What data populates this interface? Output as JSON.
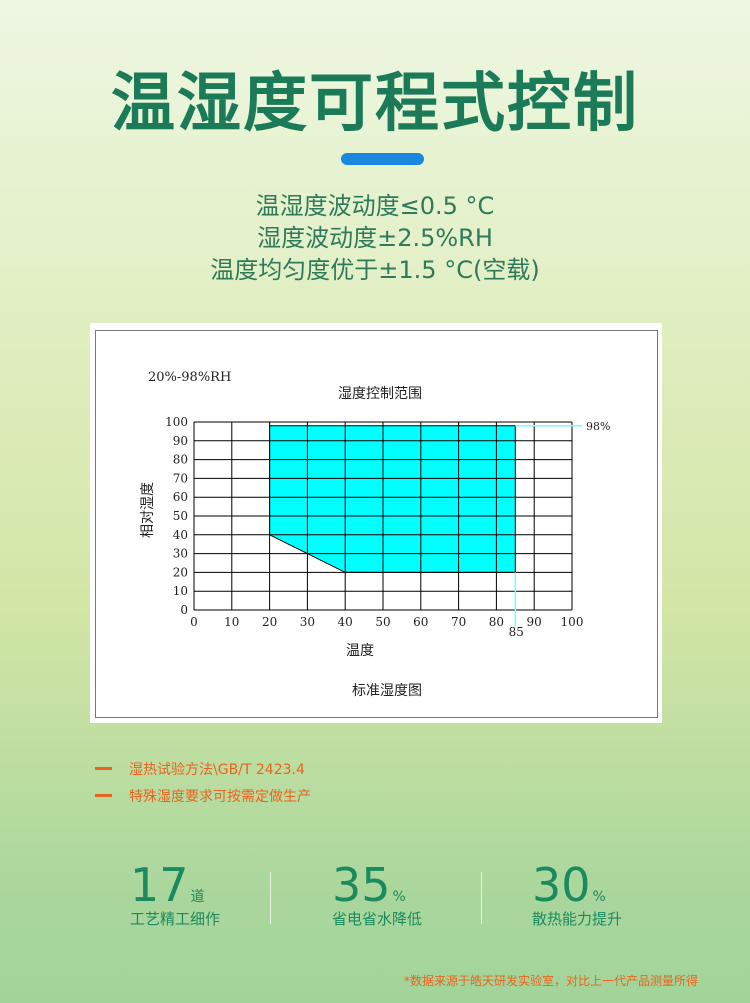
{
  "header": {
    "title": "温湿度可程式控制",
    "accent_color": "#1a88e0"
  },
  "specs": [
    "温湿度波动度≤0.5 °C",
    "湿度波动度±2.5%RH",
    "温度均匀度优于±1.5 °C(空载)"
  ],
  "chart_data": {
    "type": "area",
    "corner_label": "20%-98%RH",
    "title": "湿度控制范围",
    "xlabel": "温度",
    "ylabel": "相对湿度",
    "caption": "标准湿度图",
    "xlim": [
      0,
      100
    ],
    "ylim": [
      0,
      100
    ],
    "x_ticks": [
      0,
      10,
      20,
      30,
      40,
      50,
      60,
      70,
      80,
      90,
      100
    ],
    "y_ticks": [
      0,
      10,
      20,
      30,
      40,
      50,
      60,
      70,
      80,
      90,
      100
    ],
    "grid": true,
    "region": {
      "x": [
        20,
        85,
        85,
        40,
        20
      ],
      "y": [
        98,
        98,
        20,
        20,
        40
      ],
      "color": "#00ffff"
    },
    "annotations": [
      {
        "text": "98%",
        "y": 98
      },
      {
        "text": "85",
        "x": 85
      }
    ]
  },
  "notes": [
    "湿热试验方法\\GB/T 2423.4",
    "特殊湿度要求可按需定做生产"
  ],
  "stats": [
    {
      "value": "17",
      "unit": "道",
      "label": "工艺精工细作"
    },
    {
      "value": "35",
      "unit": "%",
      "label": "省电省水降低"
    },
    {
      "value": "30",
      "unit": "%",
      "label": "散热能力提升"
    }
  ],
  "footnote": "*数据来源于皓天研发实验室，对比上一代产品测量所得"
}
